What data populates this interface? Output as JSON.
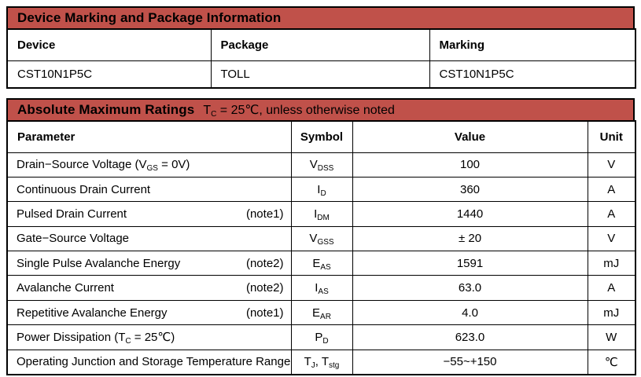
{
  "colors": {
    "accent_red": "#C0514A",
    "border": "#000000",
    "text": "#000000",
    "background": "#FFFFFF"
  },
  "device_table": {
    "title": "Device Marking and Package Information",
    "columns": [
      "Device",
      "Package",
      "Marking"
    ],
    "rows": [
      {
        "device": "CST10N1P5C",
        "package": "TOLL",
        "marking": "CST10N1P5C"
      }
    ]
  },
  "ratings_table": {
    "title": "Absolute Maximum Ratings",
    "condition": [
      {
        "t": "T"
      },
      {
        "t": "C",
        "sub": true
      },
      {
        "t": " = 25℃, unless otherwise noted"
      }
    ],
    "columns": [
      "Parameter",
      "Symbol",
      "Value",
      "Unit"
    ],
    "rows": [
      {
        "parameter": [
          {
            "t": "Drain−Source Voltage (V"
          },
          {
            "t": "GS",
            "sub": true
          },
          {
            "t": " = 0V)"
          }
        ],
        "note": "",
        "symbol": [
          {
            "t": "V"
          },
          {
            "t": "DSS",
            "sub": true
          }
        ],
        "value": "100",
        "unit": "V"
      },
      {
        "parameter": [
          {
            "t": "Continuous Drain Current"
          }
        ],
        "note": "",
        "symbol": [
          {
            "t": "I"
          },
          {
            "t": "D",
            "sub": true
          }
        ],
        "value": "360",
        "unit": "A"
      },
      {
        "parameter": [
          {
            "t": "Pulsed Drain Current"
          }
        ],
        "note": "(note1)",
        "symbol": [
          {
            "t": "I"
          },
          {
            "t": "DM",
            "sub": true
          }
        ],
        "value": "1440",
        "unit": "A"
      },
      {
        "parameter": [
          {
            "t": "Gate−Source Voltage"
          }
        ],
        "note": "",
        "symbol": [
          {
            "t": "V"
          },
          {
            "t": "GSS",
            "sub": true
          }
        ],
        "value": "± 20",
        "unit": "V"
      },
      {
        "parameter": [
          {
            "t": "Single Pulse Avalanche Energy"
          }
        ],
        "note": "(note2)",
        "symbol": [
          {
            "t": "E"
          },
          {
            "t": "AS",
            "sub": true
          }
        ],
        "value": "1591",
        "unit": "mJ"
      },
      {
        "parameter": [
          {
            "t": "Avalanche Current"
          }
        ],
        "note": "(note2)",
        "symbol": [
          {
            "t": "I"
          },
          {
            "t": "AS",
            "sub": true
          }
        ],
        "value": "63.0",
        "unit": "A"
      },
      {
        "parameter": [
          {
            "t": "Repetitive Avalanche Energy"
          }
        ],
        "note": "(note1)",
        "symbol": [
          {
            "t": "E"
          },
          {
            "t": "AR",
            "sub": true
          }
        ],
        "value": "4.0",
        "unit": "mJ"
      },
      {
        "parameter": [
          {
            "t": "Power Dissipation (T"
          },
          {
            "t": "C",
            "sub": true
          },
          {
            "t": " = 25℃)"
          }
        ],
        "note": "",
        "symbol": [
          {
            "t": "P"
          },
          {
            "t": "D",
            "sub": true
          }
        ],
        "value": "623.0",
        "unit": "W"
      },
      {
        "parameter": [
          {
            "t": "Operating Junction and Storage Temperature Range"
          }
        ],
        "note": "",
        "symbol": [
          {
            "t": "T"
          },
          {
            "t": "J",
            "sub": true
          },
          {
            "t": ", T"
          },
          {
            "t": "stg",
            "sub": true
          }
        ],
        "value": "−55~+150",
        "unit": "℃"
      }
    ]
  }
}
